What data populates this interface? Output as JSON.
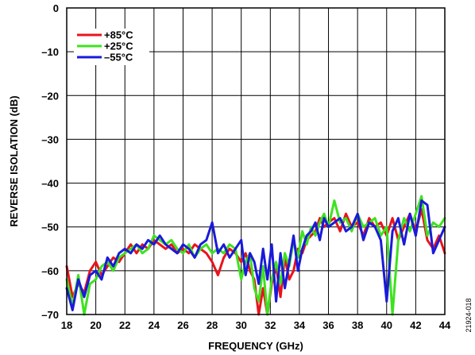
{
  "chart_data": {
    "type": "line",
    "title": "",
    "xlabel": "FREQUENCY (GHz)",
    "ylabel": "REVERSE ISOLATION (dB)",
    "xlim": [
      18,
      44
    ],
    "ylim": [
      -70,
      0
    ],
    "xticks": [
      18,
      20,
      22,
      24,
      26,
      28,
      30,
      32,
      34,
      36,
      38,
      40,
      42,
      44
    ],
    "yticks": [
      0,
      -10,
      -20,
      -30,
      -40,
      -50,
      -60,
      -70
    ],
    "xtick_labels": [
      "18",
      "20",
      "22",
      "24",
      "26",
      "28",
      "30",
      "32",
      "34",
      "36",
      "38",
      "40",
      "42",
      "44"
    ],
    "ytick_labels": [
      "0",
      "–10",
      "–20",
      "–30",
      "–40",
      "–50",
      "–60",
      "–70"
    ],
    "grid": true,
    "legend_position": "top-left",
    "figure_id": "21924-018",
    "series": [
      {
        "name": "+85°C",
        "color": "#e8141c",
        "x": [
          18,
          18.4,
          18.8,
          19.2,
          19.6,
          20,
          20.4,
          20.8,
          21.2,
          21.6,
          22,
          22.4,
          22.8,
          23.2,
          23.6,
          24,
          24.4,
          24.8,
          25.2,
          25.6,
          26,
          26.4,
          26.8,
          27.2,
          27.6,
          28,
          28.4,
          28.8,
          29.2,
          29.6,
          30,
          30.3,
          30.6,
          30.9,
          31.2,
          31.5,
          31.8,
          32.1,
          32.4,
          32.7,
          33,
          33.3,
          33.6,
          33.9,
          34.2,
          34.5,
          34.8,
          35.1,
          35.4,
          35.7,
          36,
          36.4,
          36.8,
          37.2,
          37.6,
          38,
          38.4,
          38.8,
          39.2,
          39.6,
          40,
          40.4,
          40.8,
          41.2,
          41.6,
          42,
          42.4,
          42.8,
          43.2,
          43.6,
          44
        ],
        "values": [
          -59,
          -66,
          -63,
          -65,
          -60,
          -58,
          -61,
          -59,
          -57,
          -58,
          -56,
          -54,
          -56,
          -54,
          -55,
          -53,
          -54,
          -55,
          -54,
          -56,
          -55,
          -56,
          -54,
          -55,
          -56,
          -58,
          -61,
          -57,
          -55,
          -56,
          -58,
          -56,
          -60,
          -62,
          -70,
          -64,
          -70,
          -63,
          -59,
          -66,
          -57,
          -62,
          -60,
          -55,
          -56,
          -53,
          -52,
          -51,
          -48,
          -50,
          -49,
          -48,
          -51,
          -47,
          -50,
          -49,
          -52,
          -48,
          -50,
          -49,
          -52,
          -48,
          -53,
          -50,
          -47,
          -51,
          -46,
          -53,
          -55,
          -52,
          -56
        ]
      },
      {
        "name": "+25°C",
        "color": "#3ee21f",
        "x": [
          18,
          18.4,
          18.8,
          19.2,
          19.6,
          20,
          20.4,
          20.8,
          21.2,
          21.6,
          22,
          22.4,
          22.8,
          23.2,
          23.6,
          24,
          24.4,
          24.8,
          25.2,
          25.6,
          26,
          26.4,
          26.8,
          27.2,
          27.6,
          28,
          28.4,
          28.8,
          29.2,
          29.6,
          30,
          30.3,
          30.6,
          30.9,
          31.2,
          31.5,
          31.8,
          32.1,
          32.4,
          32.7,
          33,
          33.3,
          33.6,
          33.9,
          34.2,
          34.5,
          34.8,
          35.1,
          35.4,
          35.7,
          36,
          36.4,
          36.8,
          37.2,
          37.6,
          38,
          38.4,
          38.8,
          39.2,
          39.6,
          40,
          40.4,
          40.8,
          41.2,
          41.6,
          42,
          42.4,
          42.8,
          43.2,
          43.6,
          44
        ],
        "values": [
          -62,
          -68,
          -61,
          -70,
          -63,
          -62,
          -59,
          -58,
          -60,
          -57,
          -56,
          -55,
          -54,
          -56,
          -55,
          -52,
          -53,
          -54,
          -53,
          -55,
          -56,
          -54,
          -57,
          -55,
          -54,
          -56,
          -55,
          -56,
          -54,
          -55,
          -62,
          -58,
          -56,
          -64,
          -67,
          -59,
          -70,
          -62,
          -58,
          -63,
          -56,
          -59,
          -53,
          -57,
          -51,
          -54,
          -50,
          -52,
          -49,
          -47,
          -50,
          -44,
          -49,
          -48,
          -51,
          -47,
          -50,
          -49,
          -48,
          -52,
          -50,
          -70,
          -53,
          -48,
          -51,
          -47,
          -43,
          -52,
          -49,
          -50,
          -48
        ]
      },
      {
        "name": "–55°C",
        "color": "#1a1adb",
        "x": [
          18,
          18.4,
          18.8,
          19.2,
          19.6,
          20,
          20.4,
          20.8,
          21.2,
          21.6,
          22,
          22.4,
          22.8,
          23.2,
          23.6,
          24,
          24.4,
          24.8,
          25.2,
          25.6,
          26,
          26.4,
          26.8,
          27.2,
          27.6,
          28,
          28.4,
          28.8,
          29.2,
          29.6,
          30,
          30.3,
          30.6,
          30.9,
          31.2,
          31.5,
          31.8,
          32.1,
          32.4,
          32.7,
          33,
          33.3,
          33.6,
          33.9,
          34.2,
          34.5,
          34.8,
          35.1,
          35.4,
          35.7,
          36,
          36.4,
          36.8,
          37.2,
          37.6,
          38,
          38.4,
          38.8,
          39.2,
          39.6,
          40,
          40.4,
          40.8,
          41.2,
          41.6,
          42,
          42.4,
          42.8,
          43.2,
          43.6,
          44
        ],
        "values": [
          -64,
          -69,
          -62,
          -66,
          -61,
          -60,
          -62,
          -57,
          -59,
          -56,
          -55,
          -56,
          -54,
          -55,
          -53,
          -54,
          -52,
          -54,
          -55,
          -56,
          -54,
          -55,
          -57,
          -54,
          -53,
          -49,
          -56,
          -54,
          -57,
          -55,
          -53,
          -61,
          -56,
          -58,
          -63,
          -55,
          -62,
          -54,
          -67,
          -56,
          -64,
          -58,
          -52,
          -60,
          -55,
          -52,
          -51,
          -49,
          -53,
          -48,
          -50,
          -49,
          -48,
          -51,
          -50,
          -47,
          -53,
          -49,
          -50,
          -53,
          -67,
          -51,
          -48,
          -54,
          -47,
          -52,
          -44,
          -45,
          -56,
          -53,
          -50
        ]
      }
    ]
  }
}
